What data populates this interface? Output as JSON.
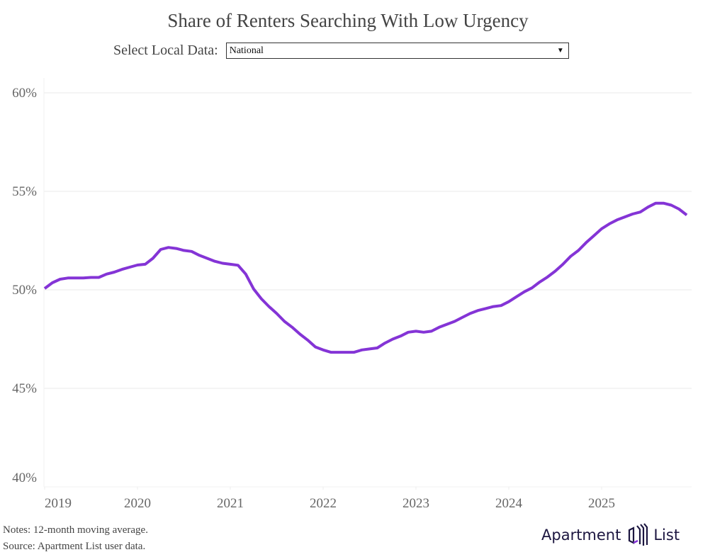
{
  "title": "Share of Renters Searching With Low Urgency",
  "selector": {
    "label": "Select Local Data:",
    "value": "National"
  },
  "notes": [
    "Notes: 12-month moving average.",
    "Source: Apartment List user data."
  ],
  "logo": {
    "left": "Apartment",
    "right": "List"
  },
  "colors": {
    "line": "#8434d6",
    "grid": "#f0f0f0"
  },
  "chart_data": {
    "type": "line",
    "title": "Share of Renters Searching With Low Urgency",
    "xlabel": "",
    "ylabel": "",
    "ylim": [
      40,
      60
    ],
    "yticks": [
      40,
      45,
      50,
      55,
      60
    ],
    "ytick_labels": [
      "40%",
      "45%",
      "50%",
      "55%",
      "60%"
    ],
    "xtick_labels": [
      "2019",
      "2020",
      "2021",
      "2022",
      "2023",
      "2024",
      "2025"
    ],
    "x_start": "2019-01",
    "x_end": "2025-12",
    "frequency": "monthly",
    "grid": "horizontal",
    "values": [
      50.07,
      50.36,
      50.54,
      50.6,
      50.6,
      50.6,
      50.63,
      50.63,
      50.8,
      50.9,
      51.04,
      51.15,
      51.26,
      51.3,
      51.6,
      52.05,
      52.15,
      52.1,
      52.0,
      51.95,
      51.75,
      51.6,
      51.45,
      51.35,
      51.3,
      51.25,
      50.8,
      50.05,
      49.55,
      49.15,
      48.8,
      48.4,
      48.1,
      47.75,
      47.45,
      47.1,
      46.95,
      46.83,
      46.83,
      46.83,
      46.83,
      46.95,
      47.0,
      47.05,
      47.3,
      47.5,
      47.65,
      47.85,
      47.9,
      47.85,
      47.9,
      48.1,
      48.25,
      48.4,
      48.6,
      48.8,
      48.95,
      49.05,
      49.15,
      49.2,
      49.4,
      49.65,
      49.9,
      50.1,
      50.4,
      50.65,
      50.95,
      51.3,
      51.7,
      52.0,
      52.4,
      52.75,
      53.1,
      53.35,
      53.55,
      53.7,
      53.85,
      53.95,
      54.2,
      54.4,
      54.4,
      54.3,
      54.1,
      53.8
    ]
  }
}
